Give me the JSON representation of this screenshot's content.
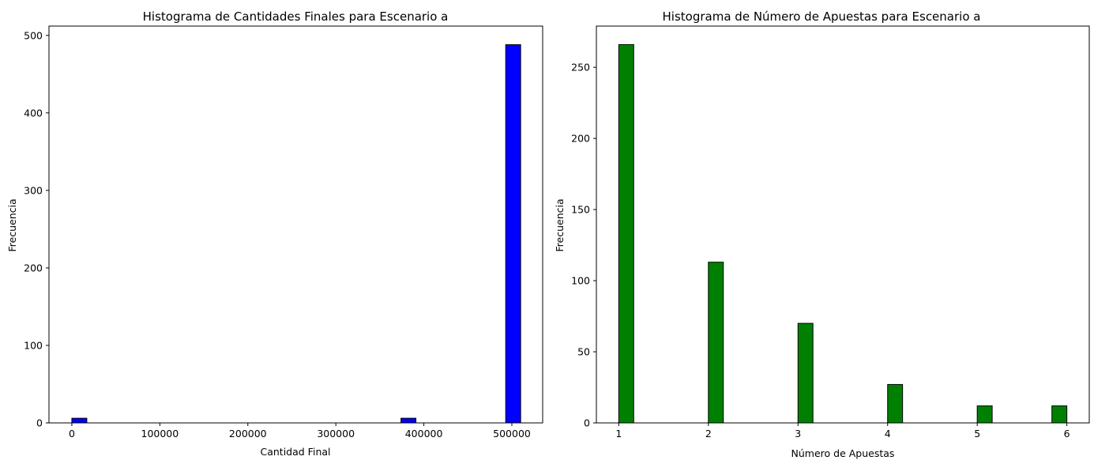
{
  "chart_data": [
    {
      "type": "bar",
      "title": "Histograma de Cantidades Finales para Escenario a",
      "xlabel": "Cantidad Final",
      "ylabel": "Frecuencia",
      "xlim": [
        -26000,
        535000
      ],
      "ylim": [
        0,
        512
      ],
      "xticks": [
        0,
        100000,
        200000,
        300000,
        400000,
        500000
      ],
      "yticks": [
        0,
        100,
        200,
        300,
        400,
        500
      ],
      "color": "#0000ff",
      "edgecolor": "#000000",
      "bars": [
        {
          "x0": 0,
          "x1": 17000,
          "value": 6
        },
        {
          "x0": 374000,
          "x1": 391000,
          "value": 6
        },
        {
          "x0": 493000,
          "x1": 510000,
          "value": 488
        }
      ]
    },
    {
      "type": "bar",
      "title": "Histograma de Número de Apuestas para Escenario a",
      "xlabel": "Número de Apuestas",
      "ylabel": "Frecuencia",
      "xlim": [
        0.75,
        6.25
      ],
      "ylim": [
        0,
        279
      ],
      "xticks": [
        1,
        2,
        3,
        4,
        5,
        6
      ],
      "yticks": [
        0,
        50,
        100,
        150,
        200,
        250
      ],
      "color": "#008000",
      "edgecolor": "#000000",
      "bars": [
        {
          "x0": 1.0,
          "x1": 1.1667,
          "value": 266
        },
        {
          "x0": 2.0,
          "x1": 2.1667,
          "value": 113
        },
        {
          "x0": 3.0,
          "x1": 3.1667,
          "value": 70
        },
        {
          "x0": 4.0,
          "x1": 4.1667,
          "value": 27
        },
        {
          "x0": 5.0,
          "x1": 5.1667,
          "value": 12
        },
        {
          "x0": 5.8333,
          "x1": 6.0,
          "value": 12
        }
      ]
    }
  ]
}
